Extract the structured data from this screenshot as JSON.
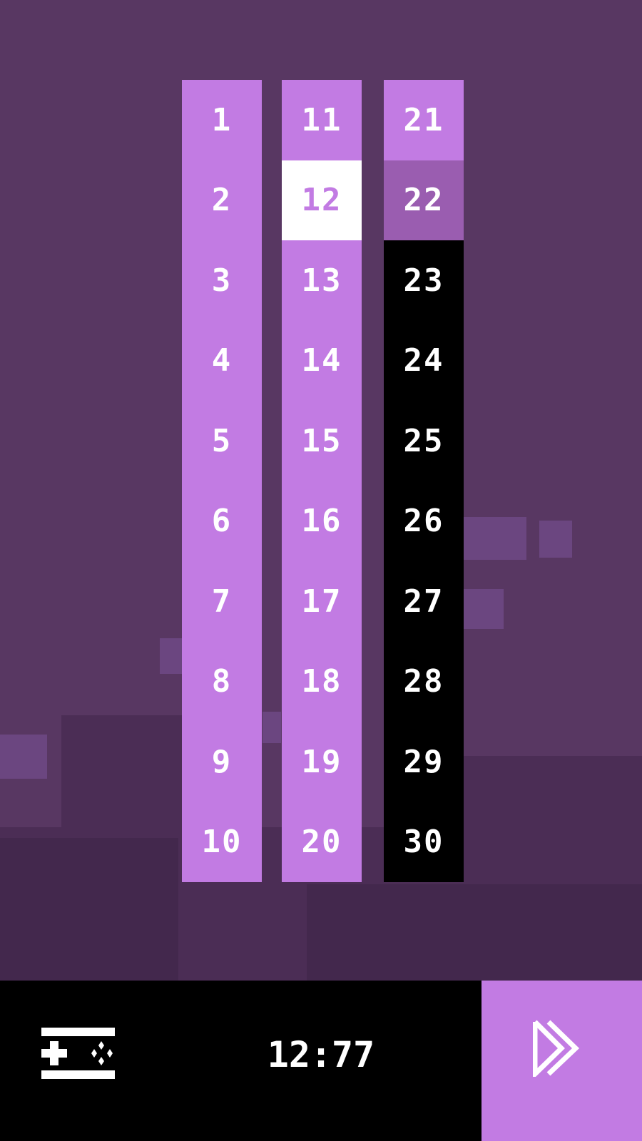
{
  "levels": {
    "columns": [
      [
        {
          "n": "1",
          "state": "open"
        },
        {
          "n": "2",
          "state": "open"
        },
        {
          "n": "3",
          "state": "open"
        },
        {
          "n": "4",
          "state": "open"
        },
        {
          "n": "5",
          "state": "open"
        },
        {
          "n": "6",
          "state": "open"
        },
        {
          "n": "7",
          "state": "open"
        },
        {
          "n": "8",
          "state": "open"
        },
        {
          "n": "9",
          "state": "open"
        },
        {
          "n": "10",
          "state": "open"
        }
      ],
      [
        {
          "n": "11",
          "state": "open"
        },
        {
          "n": "12",
          "state": "selected"
        },
        {
          "n": "13",
          "state": "open"
        },
        {
          "n": "14",
          "state": "open"
        },
        {
          "n": "15",
          "state": "open"
        },
        {
          "n": "16",
          "state": "open"
        },
        {
          "n": "17",
          "state": "open"
        },
        {
          "n": "18",
          "state": "open"
        },
        {
          "n": "19",
          "state": "open"
        },
        {
          "n": "20",
          "state": "open"
        }
      ],
      [
        {
          "n": "21",
          "state": "open"
        },
        {
          "n": "22",
          "state": "current"
        },
        {
          "n": "23",
          "state": "locked"
        },
        {
          "n": "24",
          "state": "locked"
        },
        {
          "n": "25",
          "state": "locked"
        },
        {
          "n": "26",
          "state": "locked"
        },
        {
          "n": "27",
          "state": "locked"
        },
        {
          "n": "28",
          "state": "locked"
        },
        {
          "n": "29",
          "state": "locked"
        },
        {
          "n": "30",
          "state": "locked"
        }
      ]
    ]
  },
  "bottom_bar": {
    "menu_icon": "gamepad-menu-icon",
    "time": "12:77",
    "fast_forward_icon": "fast-forward-icon"
  },
  "colors": {
    "background": "#583762",
    "open": "#c27be3",
    "current": "#9a5db0",
    "selected": "#ffffff",
    "locked": "#000000"
  }
}
